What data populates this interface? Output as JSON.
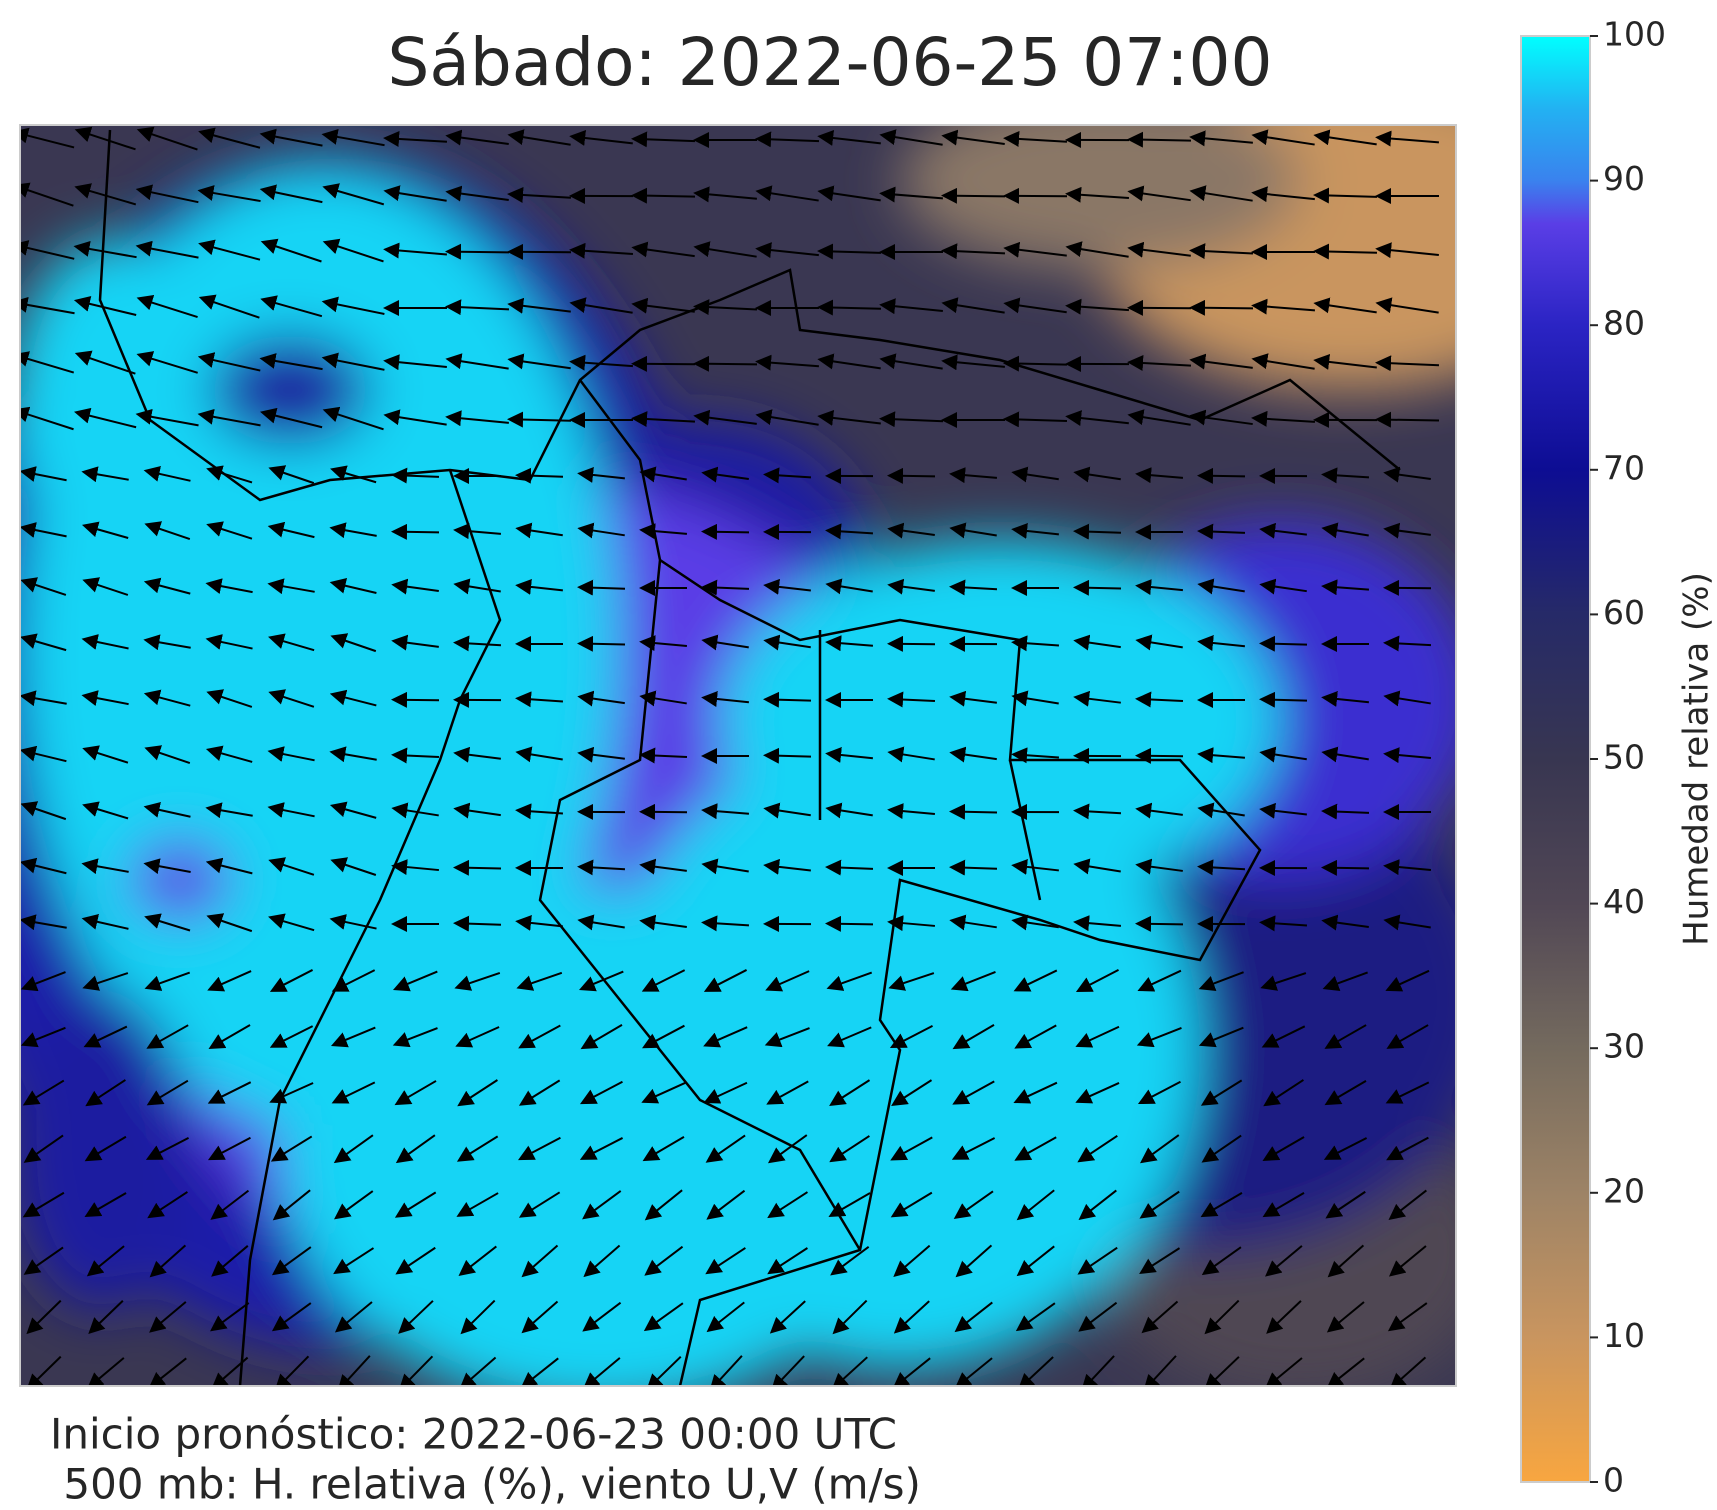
{
  "title": "Sábado: 2022-06-25 07:00",
  "colorbar": {
    "label": "Humedad relativa (%)",
    "lim": [
      0,
      100
    ],
    "ticks": [
      0,
      10,
      20,
      30,
      40,
      50,
      60,
      70,
      80,
      90,
      100
    ]
  },
  "footer": {
    "line1": "Inicio pronóstico: 2022-06-23 00:00 UTC",
    "line2": " 500 mb: H. relativa (%), viento U,V (m/s)"
  }
}
